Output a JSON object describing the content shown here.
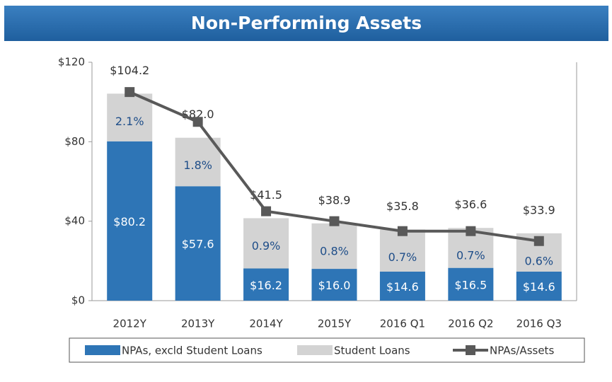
{
  "chart_data": {
    "type": "bar",
    "stacked": true,
    "title": "Non-Performing Assets",
    "categories": [
      "2012Y",
      "2013Y",
      "2014Y",
      "2015Y",
      "2016 Q1",
      "2016 Q2",
      "2016 Q3"
    ],
    "series": [
      {
        "name": "NPAs, excld Student Loans",
        "color": "#2e75b6",
        "values": [
          80.2,
          57.6,
          16.2,
          16.0,
          14.6,
          16.5,
          14.6
        ],
        "value_labels": [
          "$80.2",
          "$57.6",
          "$16.2",
          "$16.0",
          "$14.6",
          "$16.5",
          "$14.6"
        ]
      },
      {
        "name": "Student Loans",
        "color": "#d3d3d3",
        "values": [
          24.0,
          24.4,
          25.3,
          22.9,
          21.2,
          20.1,
          19.3
        ]
      },
      {
        "name": "NPAs/Assets",
        "type": "line",
        "axis": "y2",
        "color": "#595959",
        "values": [
          2.1,
          1.8,
          0.9,
          0.8,
          0.7,
          0.7,
          0.6
        ],
        "value_labels": [
          "2.1%",
          "1.8%",
          "0.9%",
          "0.8%",
          "0.7%",
          "0.7%",
          "0.6%"
        ]
      }
    ],
    "total_labels": [
      "$104.2",
      "$82.0",
      "$41.5",
      "$38.9",
      "$35.8",
      "$36.6",
      "$33.9"
    ],
    "ylim": [
      0,
      120
    ],
    "yticks": [
      {
        "value": 0,
        "label": "$0"
      },
      {
        "value": 40,
        "label": "$40"
      },
      {
        "value": 80,
        "label": "$80"
      },
      {
        "value": 120,
        "label": "$120"
      }
    ],
    "y2lim": [
      0,
      2.4
    ],
    "grid": false,
    "legend": "bottom"
  }
}
